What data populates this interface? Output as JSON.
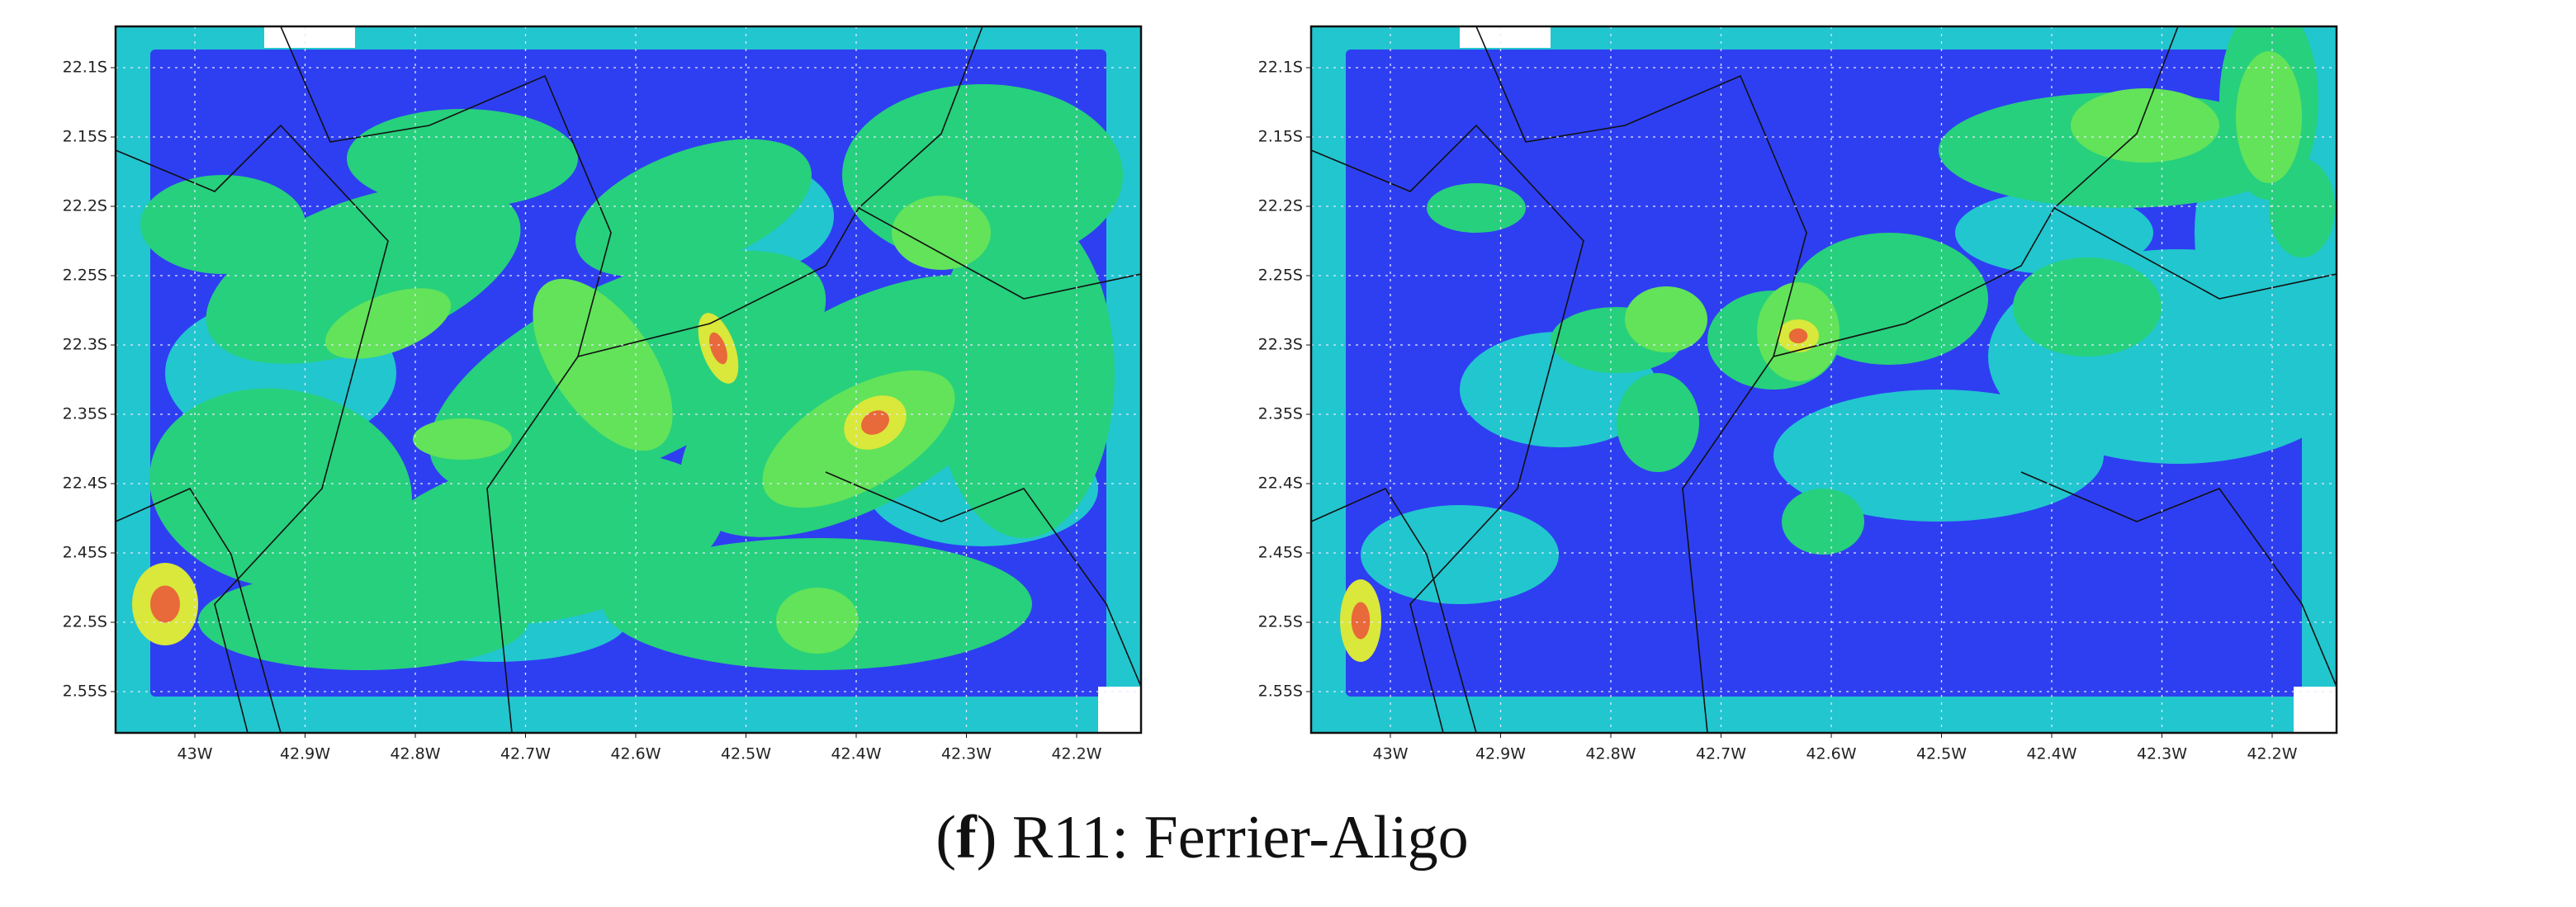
{
  "maps": [
    {
      "y_labels": [
        "22.1S",
        "2.15S",
        "22.2S",
        "2.25S",
        "22.3S",
        "2.35S",
        "22.4S",
        "2.45S",
        "22.5S",
        "2.55S"
      ],
      "x_labels": [
        "43W",
        "42.9W",
        "42.8W",
        "42.7W",
        "42.6W",
        "42.5W",
        "42.4W",
        "42.3W",
        "42.2W"
      ]
    },
    {
      "y_labels": [
        "22.1S",
        "2.15S",
        "22.2S",
        "2.25S",
        "22.3S",
        "2.35S",
        "22.4S",
        "2.45S",
        "22.5S",
        "2.55S"
      ],
      "x_labels": [
        "43W",
        "42.9W",
        "42.8W",
        "42.7W",
        "42.6W",
        "42.5W",
        "42.4W",
        "42.3W",
        "42.2W"
      ]
    }
  ],
  "caption": {
    "open": "(",
    "letter": "f",
    "text": ") R11: Ferrier-Aligo"
  }
}
